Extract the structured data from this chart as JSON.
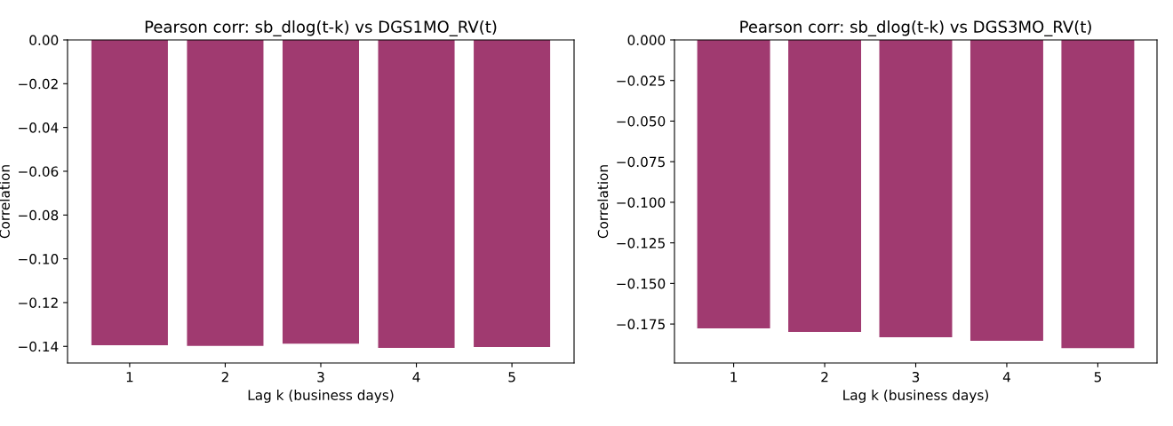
{
  "chart_data": [
    {
      "type": "bar",
      "title": "Pearson corr: sb_dlog(t-k) vs DGS1MO_RV(t)",
      "xlabel": "Lag k (business days)",
      "ylabel": "Correlation",
      "x": [
        1,
        2,
        3,
        4,
        5
      ],
      "values": [
        -0.1395,
        -0.1398,
        -0.1388,
        -0.1407,
        -0.1403
      ],
      "color": "#a03a70",
      "xlim": [
        0.35,
        5.65
      ],
      "xticks": [
        1,
        2,
        3,
        4,
        5
      ],
      "ylim": [
        -0.1476,
        0
      ],
      "yticks": [
        {
          "value": -0.14,
          "label": "−0.14"
        },
        {
          "value": -0.12,
          "label": "−0.12"
        },
        {
          "value": -0.1,
          "label": "−0.10"
        },
        {
          "value": -0.08,
          "label": "−0.08"
        },
        {
          "value": -0.06,
          "label": "−0.06"
        },
        {
          "value": -0.04,
          "label": "−0.04"
        },
        {
          "value": -0.02,
          "label": "−0.02"
        },
        {
          "value": 0,
          "label": "0.00"
        }
      ],
      "grid": false
    },
    {
      "type": "bar",
      "title": "Pearson corr: sb_dlog(t-k) vs DGS3MO_RV(t)",
      "xlabel": "Lag k (business days)",
      "ylabel": "Correlation",
      "x": [
        1,
        2,
        3,
        4,
        5
      ],
      "values": [
        -0.1777,
        -0.1798,
        -0.1832,
        -0.1854,
        -0.1898
      ],
      "color": "#a03a70",
      "xlim": [
        0.35,
        5.65
      ],
      "xticks": [
        1,
        2,
        3,
        4,
        5
      ],
      "ylim": [
        -0.199,
        0
      ],
      "yticks": [
        {
          "value": -0.175,
          "label": "−0.175"
        },
        {
          "value": -0.15,
          "label": "−0.150"
        },
        {
          "value": -0.125,
          "label": "−0.125"
        },
        {
          "value": -0.1,
          "label": "−0.100"
        },
        {
          "value": -0.075,
          "label": "−0.075"
        },
        {
          "value": -0.05,
          "label": "−0.050"
        },
        {
          "value": -0.025,
          "label": "−0.025"
        },
        {
          "value": 0,
          "label": "0.000"
        }
      ],
      "grid": false
    }
  ]
}
